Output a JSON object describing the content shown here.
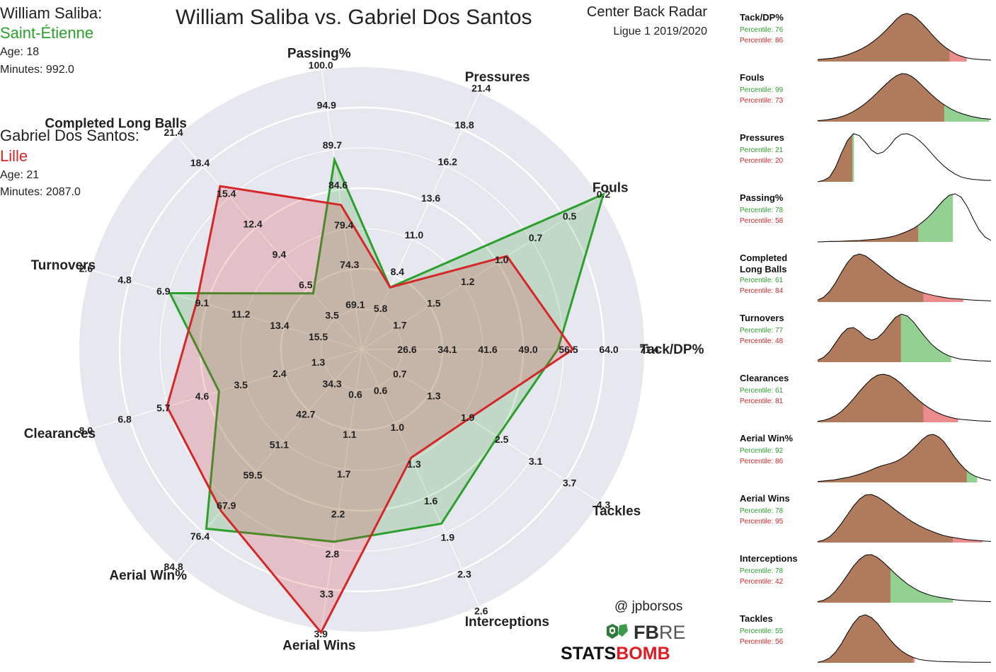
{
  "header": {
    "title": "William Saliba vs. Gabriel Dos Santos",
    "subtitle": "Center Back Radar",
    "season": "Ligue 1 2019/2020"
  },
  "player1": {
    "name": "William Saliba:",
    "club": "Saint-Étienne",
    "age": "Age: 18",
    "minutes": "Minutes: 992.0",
    "color": "#2ca02c"
  },
  "player2": {
    "name": "Gabriel Dos Santos:",
    "club": "Lille",
    "age": "Age: 21",
    "minutes": "Minutes: 2087.0",
    "color": "#d62728"
  },
  "credit": {
    "handle": "@ jpborsos",
    "fbref": "FBREF",
    "fbref_fb": "FB",
    "fbref_ref": "REF",
    "statsbomb": "STATSBOMB",
    "statsbomb_a": "STATS",
    "statsbomb_b": "BOMB"
  },
  "chart_data": [
    {
      "type": "radar",
      "title": "William Saliba vs. Gabriel Dos Santos",
      "categories": [
        "Tack/DP%",
        "Fouls",
        "Pressures",
        "Passing%",
        "Completed Long Balls",
        "Turnovers",
        "Clearances",
        "Aerial Win%",
        "Aerial Wins",
        "Interceptions",
        "Tackles"
      ],
      "ring_labels": [
        [
          "26.6",
          "34.1",
          "41.6",
          "49.0",
          "56.5",
          "64.0",
          "71.4"
        ],
        [
          "1.7",
          "1.5",
          "1.2",
          "1.0",
          "0.7",
          "0.5",
          "0.2"
        ],
        [
          "5.8",
          "8.4",
          "11.0",
          "13.6",
          "16.2",
          "18.8",
          "21.4"
        ],
        [
          "69.1",
          "74.3",
          "79.4",
          "84.6",
          "89.7",
          "94.9",
          "100.0"
        ],
        [
          "3.5",
          "6.5",
          "9.4",
          "12.4",
          "15.4",
          "18.4",
          "21.4"
        ],
        [
          "15.5",
          "13.4",
          "11.2",
          "9.1",
          "6.9",
          "4.8",
          "2.6"
        ],
        [
          "1.3",
          "2.4",
          "3.5",
          "4.6",
          "5.7",
          "6.8",
          "8.0"
        ],
        [
          "34.3",
          "42.7",
          "51.1",
          "59.5",
          "67.9",
          "76.4",
          "84.8"
        ],
        [
          "0.6",
          "1.1",
          "1.7",
          "2.2",
          "2.8",
          "3.3",
          "3.9"
        ],
        [
          "0.6",
          "1.0",
          "1.3",
          "1.6",
          "1.9",
          "2.3",
          "2.6"
        ],
        [
          "0.7",
          "1.3",
          "1.9",
          "2.5",
          "3.1",
          "3.7",
          "4.3"
        ]
      ],
      "series": [
        {
          "name": "William Saliba",
          "values": [
            55.4,
            0.17,
            7.6,
            88.4,
            6.0,
            7.0,
            4.3,
            75.4,
            2.7,
            1.85,
            2.5
          ]
        },
        {
          "name": "Gabriel Dos Santos",
          "values": [
            58.2,
            0.88,
            7.6,
            82.6,
            16.5,
            8.5,
            5.8,
            70.6,
            3.95,
            1.25,
            2.0
          ]
        }
      ]
    },
    {
      "type": "area",
      "title": "Percentile distributions",
      "metrics": [
        {
          "title": "Tack/DP%",
          "p1": "Percentile: 76",
          "p2": "Percentile: 86",
          "v1": 76,
          "v2": 86,
          "curve": [
            0.04,
            0.05,
            0.06,
            0.07,
            0.09,
            0.11,
            0.14,
            0.18,
            0.22,
            0.27,
            0.33,
            0.4,
            0.48,
            0.57,
            0.67,
            0.78,
            0.89,
            0.97,
            1.0,
            0.97,
            0.9,
            0.8,
            0.69,
            0.57,
            0.46,
            0.36,
            0.28,
            0.21,
            0.15,
            0.11,
            0.08,
            0.06,
            0.05,
            0.04,
            0.035,
            0.03
          ]
        },
        {
          "title": "Fouls",
          "p1": "Percentile: 99",
          "p2": "Percentile: 73",
          "v1": 99,
          "v2": 73,
          "curve": [
            0.02,
            0.03,
            0.04,
            0.06,
            0.08,
            0.11,
            0.15,
            0.2,
            0.26,
            0.33,
            0.41,
            0.5,
            0.6,
            0.7,
            0.8,
            0.89,
            0.96,
            1.0,
            0.99,
            0.94,
            0.86,
            0.76,
            0.66,
            0.56,
            0.47,
            0.39,
            0.32,
            0.26,
            0.21,
            0.17,
            0.14,
            0.11,
            0.09,
            0.07,
            0.06,
            0.05
          ]
        },
        {
          "title": "Pressures",
          "p1": "Percentile: 21",
          "p2": "Percentile: 20",
          "v1": 21,
          "v2": 20,
          "curve": [
            0.0,
            0.03,
            0.1,
            0.3,
            0.6,
            0.86,
            1.0,
            0.96,
            0.82,
            0.66,
            0.58,
            0.62,
            0.74,
            0.9,
            0.99,
            1.0,
            0.95,
            0.86,
            0.74,
            0.6,
            0.46,
            0.34,
            0.24,
            0.16,
            0.1,
            0.07,
            0.05,
            0.04,
            0.03,
            0.03
          ]
        },
        {
          "title": "Passing%",
          "p1": "Percentile: 78",
          "p2": "Percentile: 58",
          "v1": 78,
          "v2": 58,
          "curve": [
            0.0,
            0.005,
            0.01,
            0.012,
            0.015,
            0.02,
            0.025,
            0.03,
            0.04,
            0.05,
            0.06,
            0.08,
            0.1,
            0.13,
            0.17,
            0.22,
            0.28,
            0.36,
            0.46,
            0.58,
            0.72,
            0.86,
            0.97,
            1.0,
            0.93,
            0.74,
            0.48,
            0.25,
            0.1,
            0.03
          ]
        },
        {
          "title": "Completed\nLong Balls",
          "p1": "Percentile: 61",
          "p2": "Percentile: 84",
          "v1": 61,
          "v2": 84,
          "curve": [
            0.04,
            0.1,
            0.22,
            0.4,
            0.62,
            0.82,
            0.96,
            1.0,
            0.96,
            0.87,
            0.77,
            0.67,
            0.57,
            0.48,
            0.4,
            0.33,
            0.27,
            0.22,
            0.18,
            0.15,
            0.12,
            0.1,
            0.08,
            0.07,
            0.06,
            0.05,
            0.04,
            0.035,
            0.03,
            0.025
          ]
        },
        {
          "title": "Turnovers",
          "p1": "Percentile: 77",
          "p2": "Percentile: 48",
          "v1": 77,
          "v2": 48,
          "curve": [
            0.04,
            0.1,
            0.22,
            0.4,
            0.58,
            0.7,
            0.72,
            0.64,
            0.52,
            0.46,
            0.5,
            0.62,
            0.78,
            0.93,
            1.0,
            0.96,
            0.84,
            0.68,
            0.52,
            0.38,
            0.27,
            0.19,
            0.13,
            0.09,
            0.06,
            0.05,
            0.04,
            0.03,
            0.025,
            0.02
          ]
        },
        {
          "title": "Clearances",
          "p1": "Percentile: 61",
          "p2": "Percentile: 81",
          "v1": 61,
          "v2": 81,
          "curve": [
            0.02,
            0.04,
            0.08,
            0.14,
            0.23,
            0.35,
            0.49,
            0.64,
            0.78,
            0.9,
            0.98,
            1.0,
            0.97,
            0.9,
            0.8,
            0.68,
            0.56,
            0.45,
            0.35,
            0.27,
            0.2,
            0.15,
            0.11,
            0.08,
            0.06,
            0.05,
            0.04,
            0.03,
            0.025,
            0.02
          ]
        },
        {
          "title": "Aerial Win%",
          "p1": "Percentile: 92",
          "p2": "Percentile: 86",
          "v1": 92,
          "v2": 86,
          "curve": [
            0.02,
            0.03,
            0.04,
            0.05,
            0.07,
            0.09,
            0.11,
            0.14,
            0.17,
            0.21,
            0.25,
            0.3,
            0.34,
            0.37,
            0.4,
            0.44,
            0.5,
            0.58,
            0.68,
            0.79,
            0.9,
            0.98,
            1.0,
            0.95,
            0.85,
            0.7,
            0.54,
            0.4,
            0.28,
            0.19,
            0.13,
            0.09,
            0.06,
            0.04
          ]
        },
        {
          "title": "Aerial Wins",
          "p1": "Percentile: 78",
          "p2": "Percentile: 95",
          "v1": 78,
          "v2": 95,
          "curve": [
            0.02,
            0.05,
            0.12,
            0.24,
            0.4,
            0.58,
            0.76,
            0.9,
            0.99,
            1.0,
            0.95,
            0.87,
            0.78,
            0.68,
            0.59,
            0.5,
            0.42,
            0.35,
            0.29,
            0.24,
            0.19,
            0.15,
            0.12,
            0.1,
            0.08,
            0.06,
            0.05,
            0.04,
            0.03,
            0.025
          ]
        },
        {
          "title": "Interceptions",
          "p1": "Percentile: 78",
          "p2": "Percentile: 42",
          "v1": 78,
          "v2": 42,
          "curve": [
            0.02,
            0.05,
            0.12,
            0.24,
            0.4,
            0.58,
            0.76,
            0.9,
            0.99,
            1.0,
            0.94,
            0.84,
            0.72,
            0.6,
            0.49,
            0.39,
            0.31,
            0.24,
            0.19,
            0.15,
            0.12,
            0.1,
            0.08,
            0.06,
            0.05,
            0.04,
            0.035,
            0.03,
            0.025,
            0.02
          ]
        },
        {
          "title": "Tackles",
          "p1": "Percentile: 55",
          "p2": "Percentile: 56",
          "v1": 55,
          "v2": 56,
          "curve": [
            0.01,
            0.04,
            0.1,
            0.22,
            0.4,
            0.62,
            0.82,
            0.96,
            1.0,
            0.94,
            0.82,
            0.66,
            0.5,
            0.36,
            0.25,
            0.17,
            0.11,
            0.07,
            0.05,
            0.04,
            0.03,
            0.025,
            0.02,
            0.02,
            0.015,
            0.015,
            0.01,
            0.01,
            0.01,
            0.01
          ]
        }
      ]
    }
  ]
}
